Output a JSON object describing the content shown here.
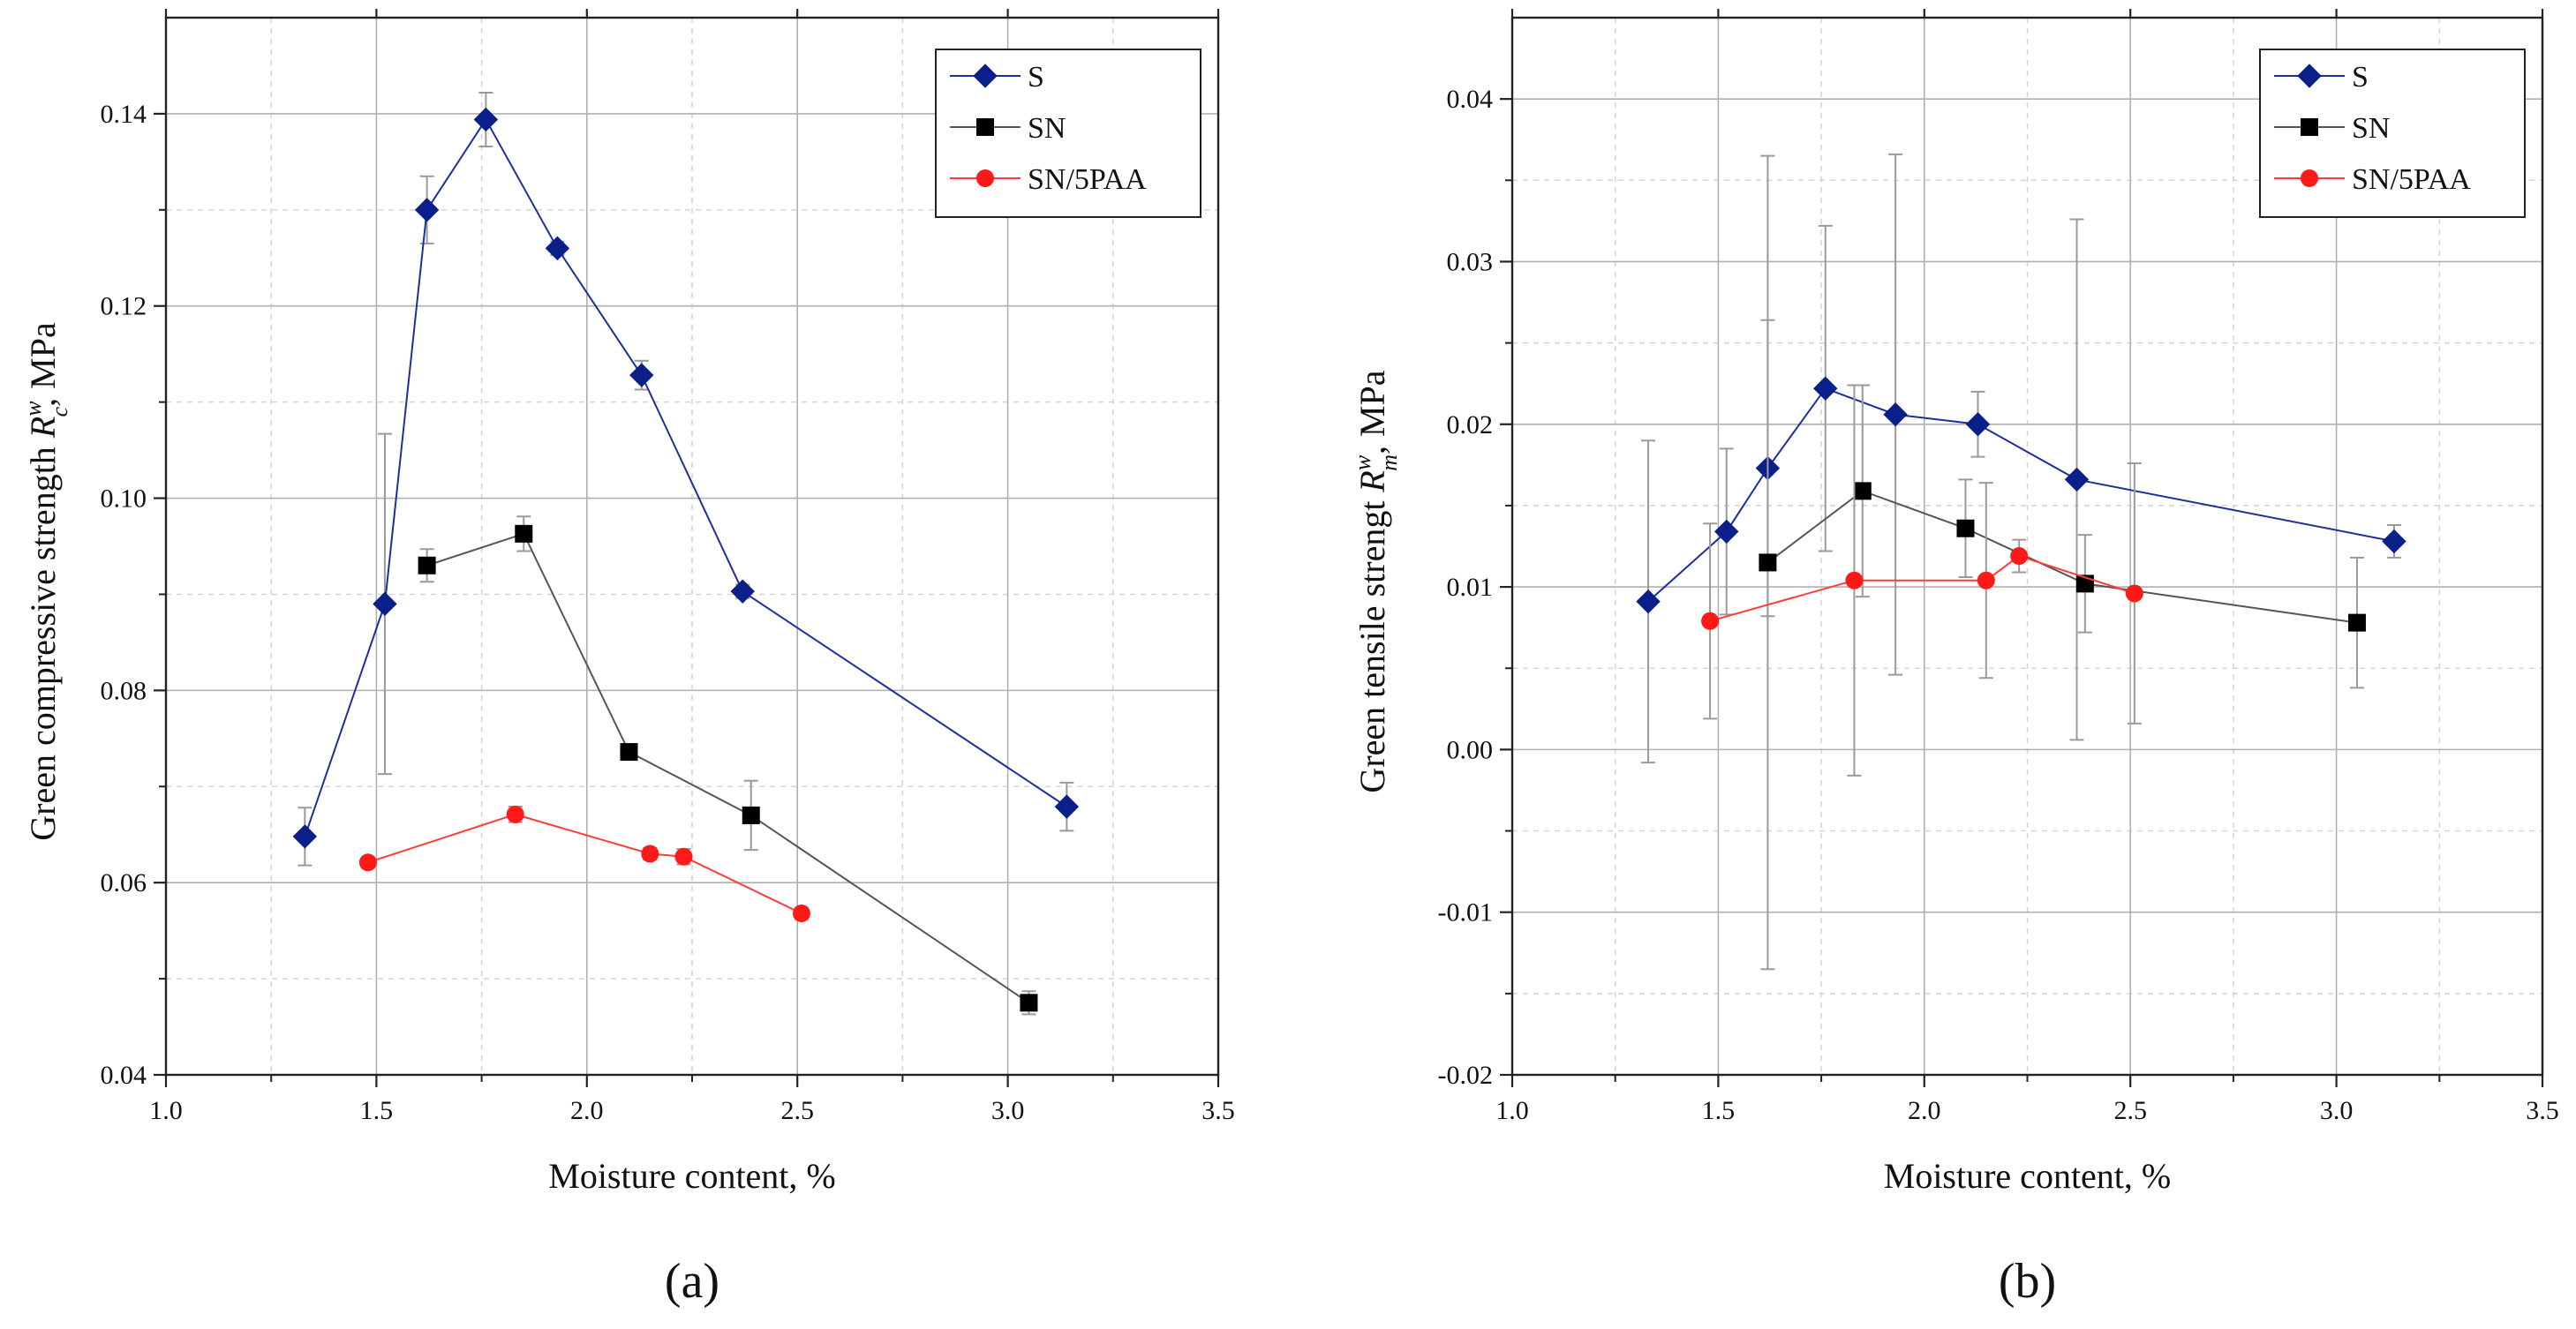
{
  "chart_data": [
    {
      "type": "line",
      "panel_label": "(a)",
      "xlabel": "Moisture content, %",
      "ylabel_prefix": "Green compressive strength ",
      "ylabel_symbol": "R",
      "ylabel_superscript": "w",
      "ylabel_subscript": "c",
      "ylabel_suffix": ", MPa",
      "xlim": [
        1.0,
        3.5
      ],
      "ylim": [
        0.04,
        0.15
      ],
      "xticks": [
        "1.0",
        "1.5",
        "2.0",
        "2.5",
        "3.0",
        "3.5"
      ],
      "yticks": [
        "0.04",
        "0.06",
        "0.08",
        "0.10",
        "0.12",
        "0.14"
      ],
      "grid": true,
      "legend_position": "top-right",
      "series": [
        {
          "name": "S",
          "color": "#1f2f9a",
          "marker_color": "#0b1f8a",
          "marker": "diamond",
          "x": [
            1.33,
            1.52,
            1.62,
            1.76,
            1.93,
            2.13,
            2.37,
            3.14
          ],
          "y": [
            0.0648,
            0.089,
            0.13,
            0.1394,
            0.126,
            0.1128,
            0.0903,
            0.0679
          ],
          "err": [
            0.003,
            0.0177,
            0.0035,
            0.0028,
            0.0007,
            0.0015,
            0.0007,
            0.0025
          ]
        },
        {
          "name": "SN",
          "color": "#555555",
          "marker_color": "#000000",
          "marker": "square",
          "x": [
            1.62,
            1.85,
            2.1,
            2.39,
            3.05
          ],
          "y": [
            0.093,
            0.0963,
            0.0736,
            0.067,
            0.0475
          ],
          "err": [
            0.0017,
            0.0018,
            0.0008,
            0.0036,
            0.0012
          ]
        },
        {
          "name": "SN/5PAA",
          "color": "#ff3b3b",
          "marker_color": "#ff1a1a",
          "marker": "circle",
          "x": [
            1.48,
            1.83,
            2.15,
            2.23,
            2.51
          ],
          "y": [
            0.0621,
            0.0671,
            0.063,
            0.0627,
            0.0568
          ],
          "err": [
            0.0005,
            0.0008,
            0.0006,
            0.0008,
            0.0006
          ]
        }
      ]
    },
    {
      "type": "line",
      "panel_label": "(b)",
      "xlabel": "Moisture content, %",
      "ylabel_prefix": "Green tensile strengt ",
      "ylabel_symbol": "R",
      "ylabel_superscript": "w",
      "ylabel_subscript": "m",
      "ylabel_suffix": ", MPa",
      "xlim": [
        1.0,
        3.5
      ],
      "ylim": [
        -0.02,
        0.045
      ],
      "xticks": [
        "1.0",
        "1.5",
        "2.0",
        "2.5",
        "3.0",
        "3.5"
      ],
      "yticks": [
        "-0.02",
        "-0.01",
        "0.00",
        "0.01",
        "0.02",
        "0.03",
        "0.04"
      ],
      "grid": true,
      "legend_position": "top-right",
      "series": [
        {
          "name": "S",
          "color": "#1f2f9a",
          "marker_color": "#0b1f8a",
          "marker": "diamond",
          "x": [
            1.33,
            1.52,
            1.62,
            1.76,
            1.93,
            2.13,
            2.37,
            3.14
          ],
          "y": [
            0.0091,
            0.0134,
            0.0173,
            0.0222,
            0.0206,
            0.02,
            0.0166,
            0.0128
          ],
          "err": [
            0.0099,
            0.0051,
            0.0091,
            0.01,
            0.016,
            0.002,
            0.016,
            0.001
          ]
        },
        {
          "name": "SN",
          "color": "#555555",
          "marker_color": "#000000",
          "marker": "square",
          "x": [
            1.62,
            1.85,
            2.1,
            2.39,
            3.05
          ],
          "y": [
            0.0115,
            0.0159,
            0.0136,
            0.0102,
            0.0078
          ],
          "err": [
            0.025,
            0.0065,
            0.003,
            0.003,
            0.004
          ]
        },
        {
          "name": "SN/5PAA",
          "color": "#ff3b3b",
          "marker_color": "#ff1a1a",
          "marker": "circle",
          "x": [
            1.48,
            1.83,
            2.15,
            2.23,
            2.51
          ],
          "y": [
            0.0079,
            0.0104,
            0.0104,
            0.0119,
            0.0096
          ],
          "err": [
            0.006,
            0.012,
            0.006,
            0.001,
            0.008
          ]
        }
      ]
    }
  ]
}
